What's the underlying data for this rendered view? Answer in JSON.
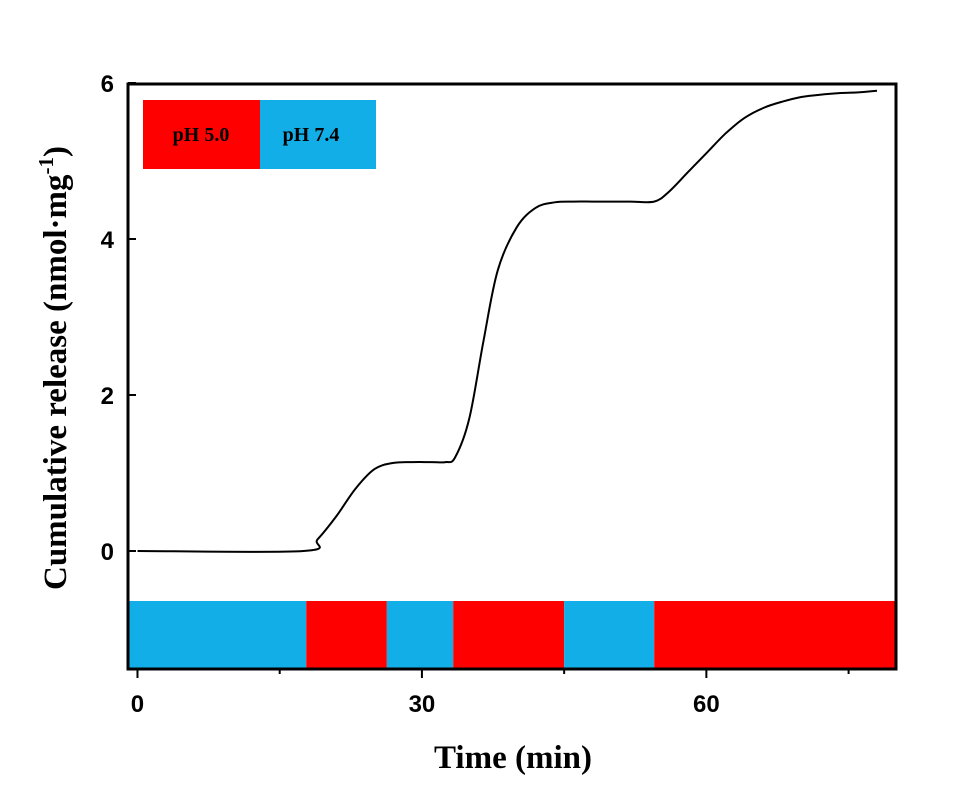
{
  "chart_data": {
    "type": "line",
    "xlabel": "Time (min)",
    "ylabel_main": "Cumulative release (nmol·mg",
    "ylabel_sup": "-1",
    "ylabel_end": ")",
    "xlim": [
      -1,
      80
    ],
    "ylim": [
      0,
      6
    ],
    "x_ticks": [
      0,
      30,
      60
    ],
    "x_minor_ticks": [
      15,
      45,
      75
    ],
    "y_ticks": [
      0,
      2,
      4,
      6
    ],
    "grid": false,
    "series": [
      {
        "x": [
          0,
          17.5,
          19,
          21,
          23,
          25,
          27,
          29,
          31,
          32.5,
          33.5,
          35,
          36.5,
          38,
          40,
          42,
          44,
          46,
          48,
          50,
          52,
          54.5,
          56,
          58,
          60,
          62,
          64,
          66,
          68,
          70,
          72,
          74,
          76,
          78
        ],
        "y": [
          0,
          0,
          0.15,
          0.45,
          0.8,
          1.05,
          1.13,
          1.14,
          1.14,
          1.14,
          1.2,
          1.7,
          2.7,
          3.6,
          4.15,
          4.4,
          4.47,
          4.48,
          4.48,
          4.48,
          4.48,
          4.48,
          4.6,
          4.85,
          5.1,
          5.35,
          5.55,
          5.68,
          5.76,
          5.82,
          5.85,
          5.87,
          5.88,
          5.9
        ]
      }
    ],
    "ph_bands": [
      {
        "label": "pH 7.4",
        "start": -1,
        "end": 17.8,
        "color": "#12aee8"
      },
      {
        "label": "pH 5.0",
        "start": 17.8,
        "end": 26.3,
        "color": "#ff0000"
      },
      {
        "label": "pH 7.4",
        "start": 26.3,
        "end": 33.3,
        "color": "#12aee8"
      },
      {
        "label": "pH 5.0",
        "start": 33.3,
        "end": 45,
        "color": "#ff0000"
      },
      {
        "label": "pH 7.4",
        "start": 45,
        "end": 54.5,
        "color": "#12aee8"
      },
      {
        "label": "pH 5.0",
        "start": 54.5,
        "end": 80,
        "color": "#ff0000"
      }
    ],
    "legend": {
      "position": "top-left",
      "entries": [
        {
          "label": "pH 5.0",
          "color": "#ff0000"
        },
        {
          "label": "pH 7.4",
          "color": "#12aee8"
        }
      ]
    }
  }
}
